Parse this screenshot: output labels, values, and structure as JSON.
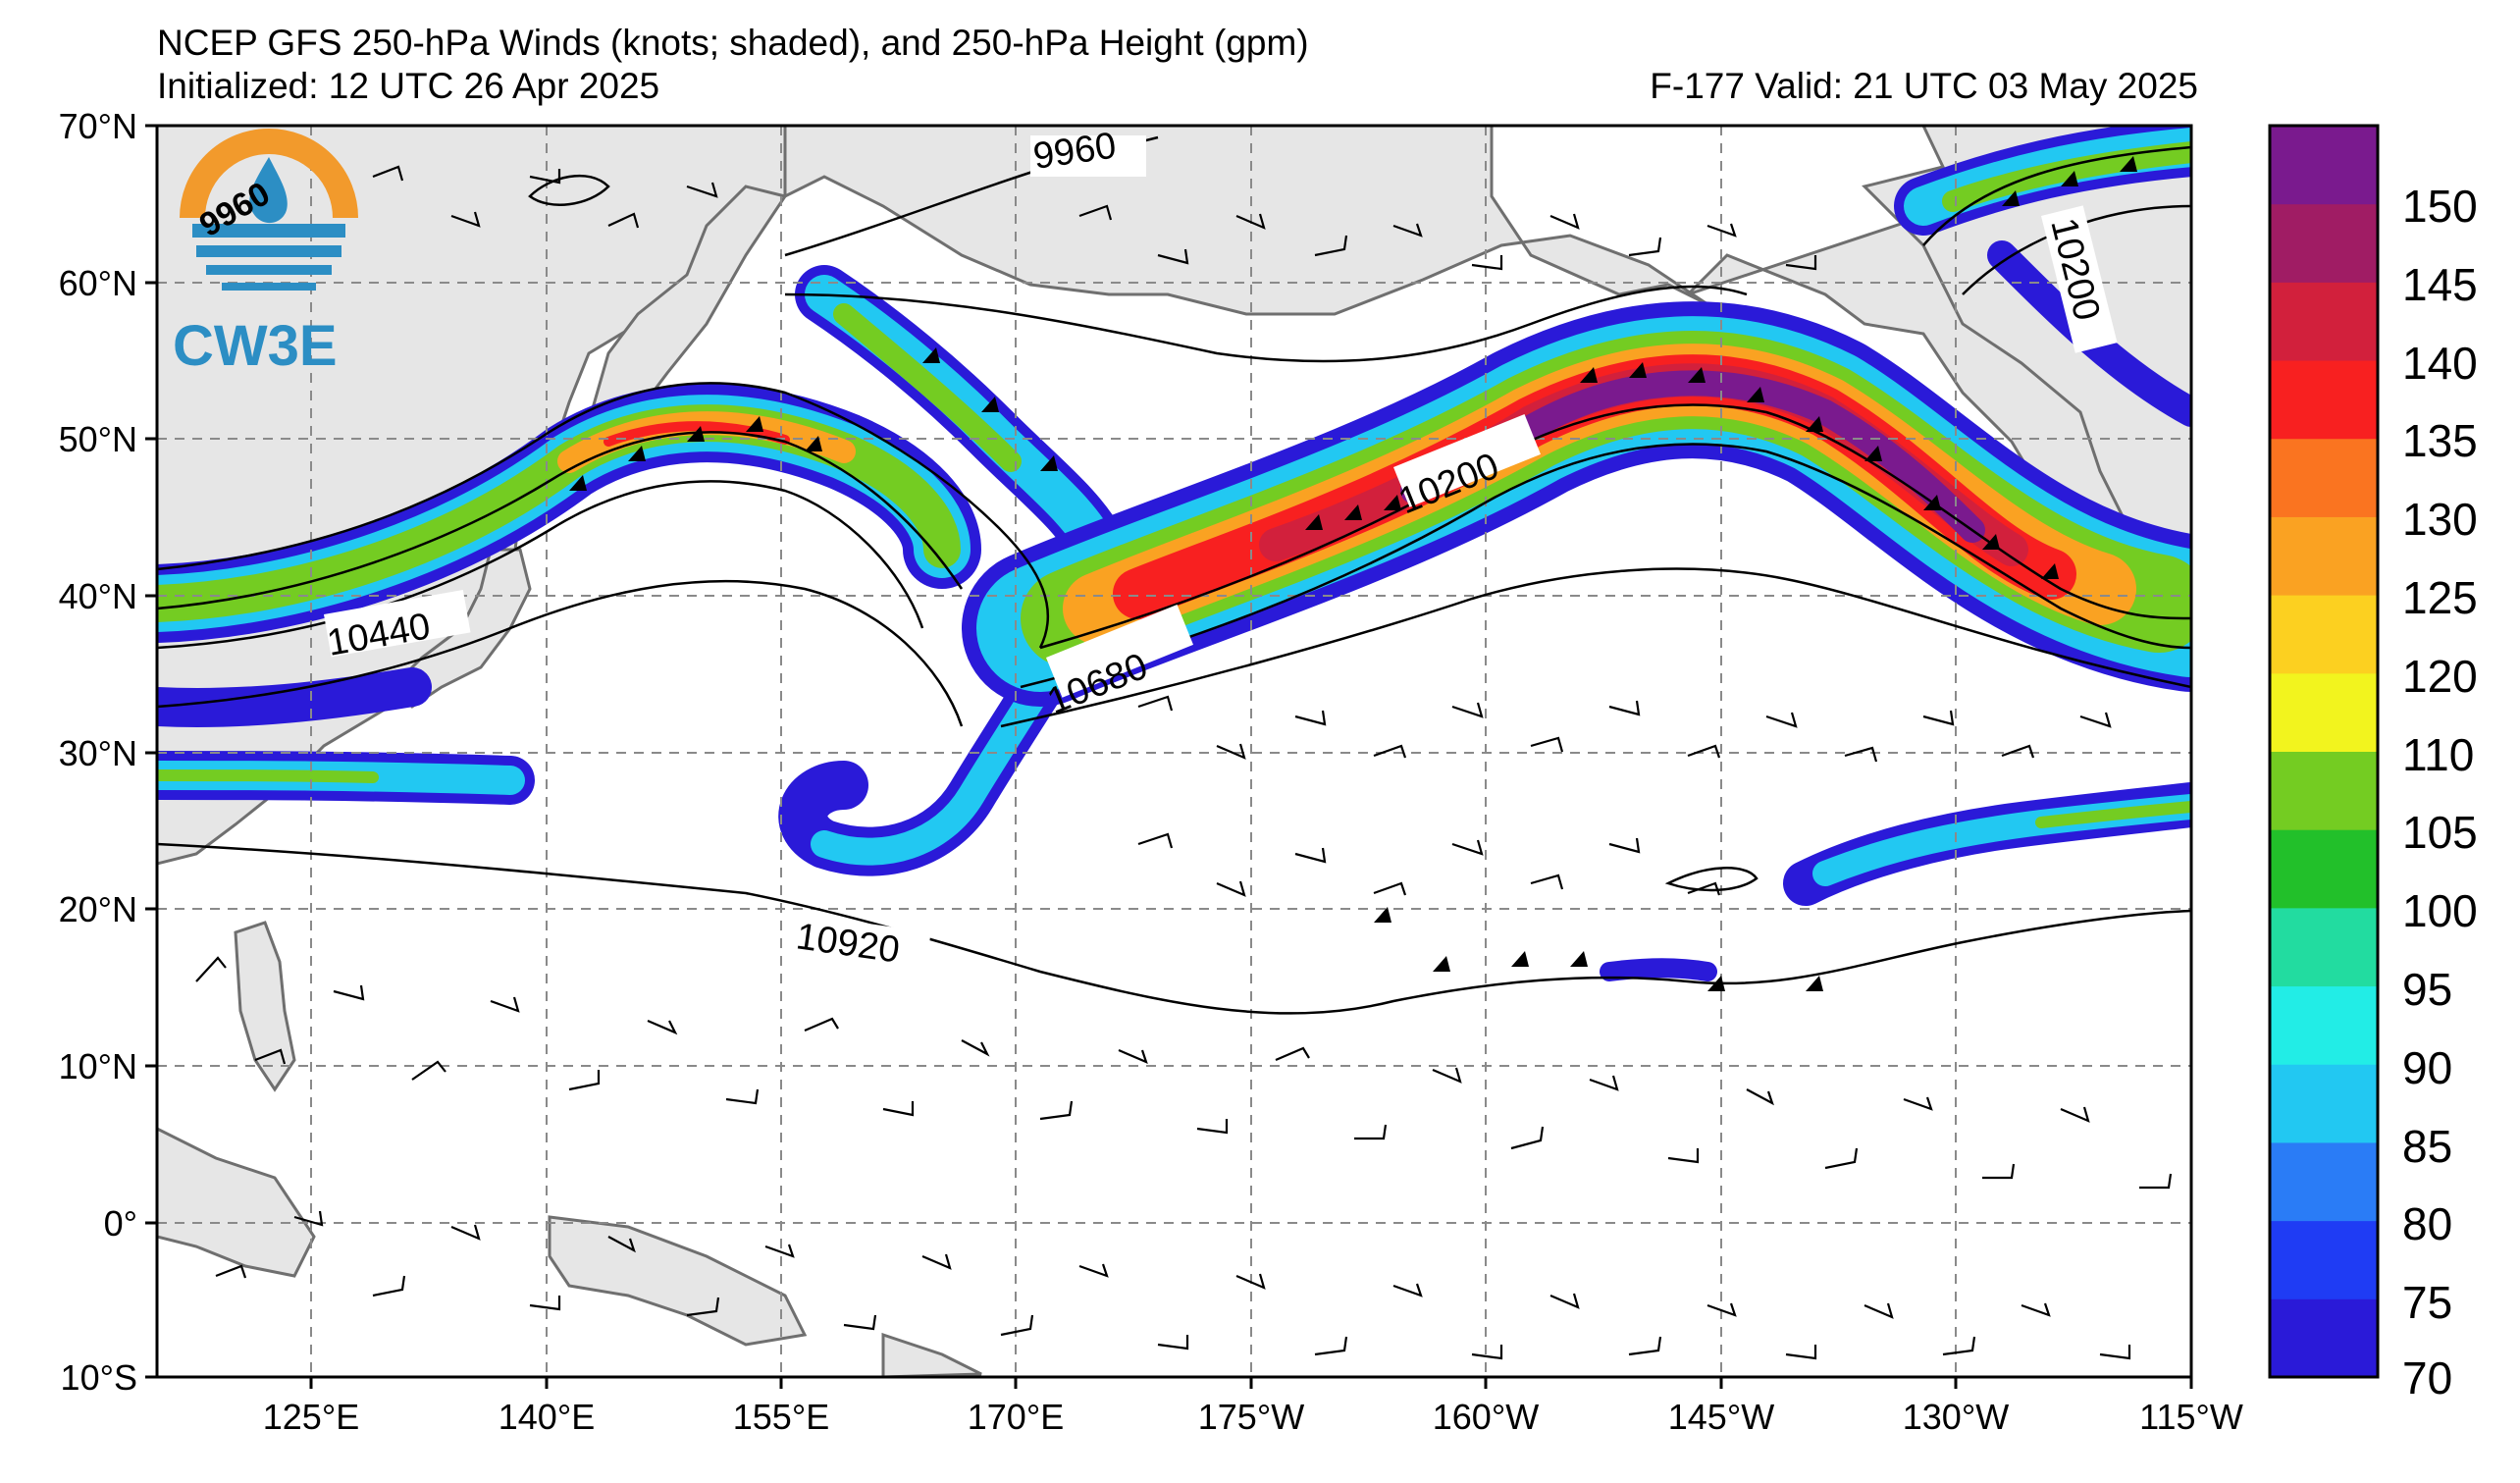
{
  "title": {
    "line1": "NCEP GFS 250-hPa Winds (knots; shaded), and 250-hPa Height (gpm)",
    "init": "Initialized: 12 UTC 26 Apr 2025",
    "valid": "F-177  Valid: 21 UTC 03 May 2025"
  },
  "logo": {
    "text": "CW3E",
    "badge": "9960"
  },
  "axes": {
    "lat_labels": [
      "70°N",
      "60°N",
      "50°N",
      "40°N",
      "30°N",
      "20°N",
      "10°N",
      "0°",
      "10°S"
    ],
    "lon_labels": [
      "125°E",
      "140°E",
      "155°E",
      "170°E",
      "175°W",
      "160°W",
      "145°W",
      "130°W",
      "115°W"
    ]
  },
  "contour_labels": {
    "c9960": "9960",
    "c10200a": "10200",
    "c10200b": "10200",
    "c10440": "10440",
    "c10680": "10680",
    "c10920": "10920"
  },
  "colorbar": {
    "labels": [
      "150",
      "145",
      "140",
      "135",
      "130",
      "125",
      "120",
      "110",
      "105",
      "100",
      "95",
      "90",
      "85",
      "80",
      "75",
      "70"
    ],
    "colors": [
      "#2a1ad8",
      "#1f3cf4",
      "#2a7cf6",
      "#22c8f2",
      "#22ede6",
      "#22dca0",
      "#22c02a",
      "#74cc22",
      "#f2f41e",
      "#fcd020",
      "#faa222",
      "#fa7420",
      "#f82020",
      "#d2203c",
      "#a01c64",
      "#7a1a8e"
    ]
  },
  "colors": {
    "land": "#e6e6e6",
    "coast": "#6f6f6f",
    "grid": "#8a8a8a",
    "logo_orange": "#f29a2c",
    "logo_blue": "#2c8ec4"
  }
}
